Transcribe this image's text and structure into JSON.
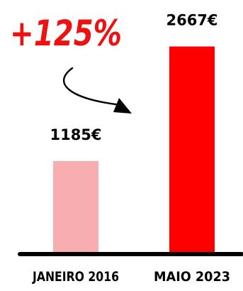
{
  "chart_data": {
    "type": "bar",
    "categories": [
      "JANEIRO 2016",
      "MAIO 2023"
    ],
    "values": [
      1185,
      2667
    ],
    "value_labels": [
      "1185€",
      "2667€"
    ],
    "annotation": "+125%",
    "ylim": [
      0,
      2800
    ],
    "grid": false,
    "legend": "none"
  },
  "colors": {
    "bar_2016": "#f8aeb1",
    "bar_2023": "#ff0000",
    "annotation": "#ee1111",
    "text": "#000000",
    "baseline": "#000000",
    "arrow": "#000000"
  }
}
